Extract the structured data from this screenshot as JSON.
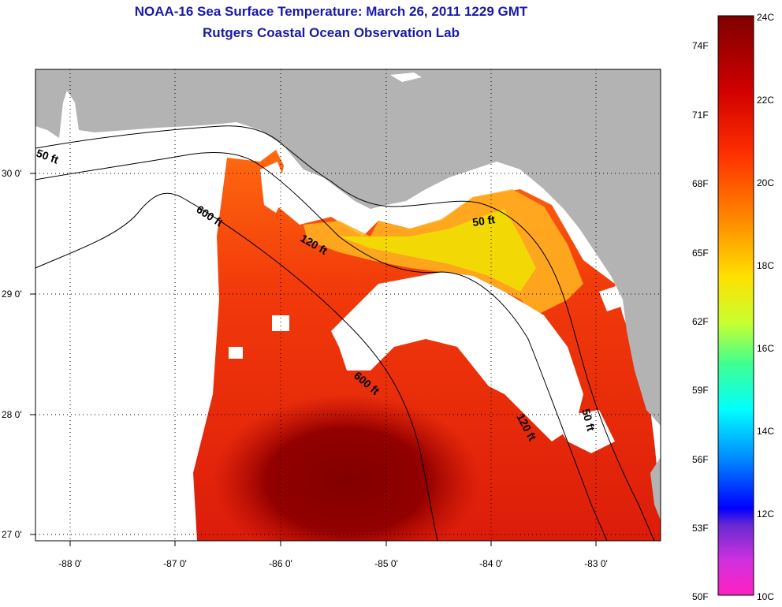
{
  "title": {
    "line1": "NOAA-16 Sea Surface Temperature:  March 26, 2011 1229 GMT",
    "line2": "Rutgers Coastal Ocean Observation Lab"
  },
  "map": {
    "lon_ticks": [
      "-88 0'",
      "-87 0'",
      "-86 0'",
      "-85 0'",
      "-84 0'",
      "-83 0'"
    ],
    "lat_ticks": [
      "30 0'",
      "29 0'",
      "28 0'",
      "27 0'"
    ],
    "depth_contours": [
      {
        "label": "50 ft"
      },
      {
        "label": "600 ft"
      },
      {
        "label": "120 ft"
      },
      {
        "label": "50 ft"
      },
      {
        "label": "600 ft"
      },
      {
        "label": "120 ft"
      },
      {
        "label": "50 ft"
      }
    ],
    "colors": {
      "land": "#b3b3b3",
      "cloud": "#ffffff",
      "warm": "#e8200f",
      "hot": "#8e0000"
    }
  },
  "colorbar": {
    "fahrenheit": [
      "74F",
      "71F",
      "68F",
      "65F",
      "62F",
      "59F",
      "56F",
      "53F",
      "50F"
    ],
    "celsius": [
      "24C",
      "22C",
      "20C",
      "18C",
      "16C",
      "14C",
      "12C",
      "10C"
    ],
    "range_c": [
      10,
      24
    ]
  }
}
